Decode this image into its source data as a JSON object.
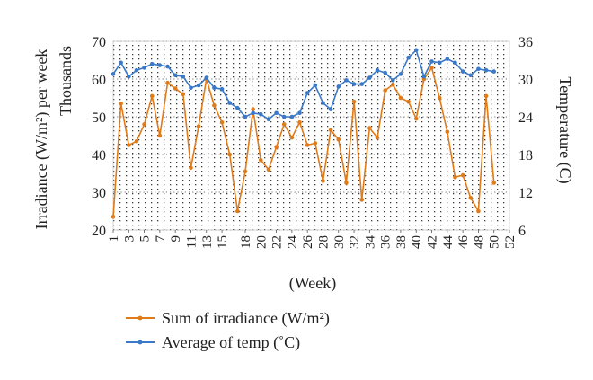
{
  "chart_data": {
    "type": "line",
    "title": "",
    "xlabel": "(Week)",
    "ylabel_left": "Irradiance (W/m²) per week",
    "ylabel_left_units_label": "Thousands",
    "ylabel_right": "Temperature (C)",
    "x": [
      1,
      2,
      3,
      4,
      5,
      6,
      7,
      8,
      9,
      10,
      11,
      12,
      13,
      14,
      15,
      16,
      17,
      18,
      19,
      20,
      21,
      22,
      23,
      24,
      25,
      26,
      27,
      28,
      29,
      30,
      31,
      32,
      33,
      34,
      35,
      36,
      37,
      38,
      39,
      40,
      41,
      42,
      43,
      44,
      45,
      46,
      47,
      48,
      49,
      50,
      51,
      52
    ],
    "x_tick_labels": [
      "1",
      "3",
      "5",
      "7",
      "9",
      "11",
      "13",
      "15",
      "18",
      "20",
      "22",
      "24",
      "26",
      "28",
      "30",
      "32",
      "34",
      "36",
      "38",
      "40",
      "42",
      "44",
      "46",
      "48",
      "50",
      "52"
    ],
    "ylim_left": [
      20,
      70
    ],
    "yticks_left": [
      20,
      30,
      40,
      50,
      60,
      70
    ],
    "ylim_right": [
      6,
      36
    ],
    "yticks_right": [
      6,
      12,
      18,
      24,
      30,
      36
    ],
    "grid": "dotted",
    "legend_position": "bottom",
    "series": [
      {
        "name": "Sum of irradiance (W/m²)",
        "axis": "left",
        "color": "#e07b1a",
        "values": [
          23.5,
          53.5,
          42.5,
          43.5,
          48,
          55.5,
          45,
          59,
          57.5,
          56,
          36.5,
          47.5,
          60,
          53,
          48.5,
          40,
          25,
          35.5,
          52,
          38.5,
          36,
          42,
          48,
          44.5,
          48.5,
          42.5,
          43,
          33,
          46.5,
          44,
          32.5,
          54,
          28,
          47,
          44.5,
          57,
          58.5,
          55,
          54,
          49.5,
          60,
          63,
          55,
          46,
          34,
          34.5,
          28.5,
          25,
          55.5,
          32.5,
          null,
          null
        ]
      },
      {
        "name": "Average of temp (˚C)",
        "axis": "right",
        "color": "#3a78c8",
        "values": [
          30.8,
          32.6,
          30.4,
          31.4,
          31.8,
          32.4,
          32.2,
          32,
          30.6,
          30.4,
          28.6,
          29,
          30.2,
          28.6,
          28.4,
          26.2,
          25.4,
          24,
          24.6,
          24.4,
          23.6,
          24.6,
          24,
          24,
          24.6,
          27.8,
          29,
          26.2,
          25.2,
          28.8,
          29.8,
          29.2,
          29.2,
          30.2,
          31.4,
          31,
          29.8,
          30.8,
          33.4,
          34.6,
          30.4,
          32.8,
          32.6,
          33.2,
          32.6,
          31.2,
          30.6,
          31.6,
          31.4,
          31.2,
          null,
          null
        ]
      }
    ]
  }
}
